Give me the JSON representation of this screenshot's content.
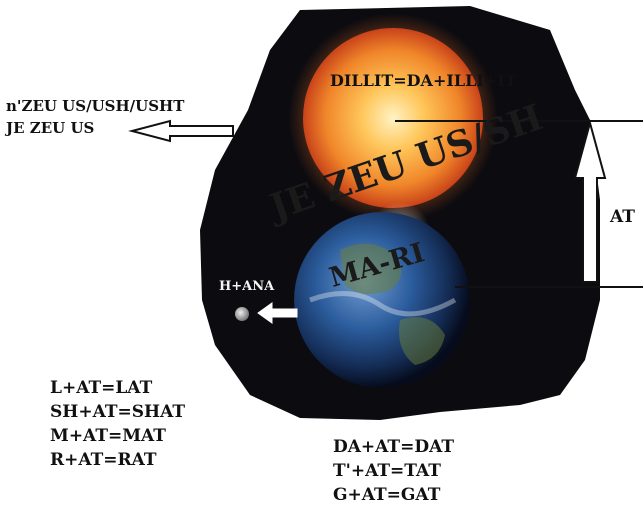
{
  "diagram": {
    "sun_label": "DILLIT=DA+ILLI+IT",
    "left_note_line1": "n'ZEU US/USH/USHT",
    "left_note_line2": "JE ZEU US",
    "diagonal_text": "JE ZEU US/SH",
    "earth_text": "MA-RI",
    "moon_label": "H+ANA",
    "arrow_label": "AT",
    "equations_left": [
      "L+AT=LAT",
      "SH+AT=SHAT",
      "M+AT=MAT",
      "R+AT=RAT"
    ],
    "equations_bottom": [
      "DA+AT=DAT",
      "T'+AT=TAT",
      "G+AT=GAT"
    ]
  },
  "colors": {
    "background": "#ffffff",
    "space": "#0b0b10",
    "sun_core": "#ffd27a",
    "sun_edge": "#e0581c",
    "earth_blue": "#2a5a9a",
    "text": "#111111"
  }
}
